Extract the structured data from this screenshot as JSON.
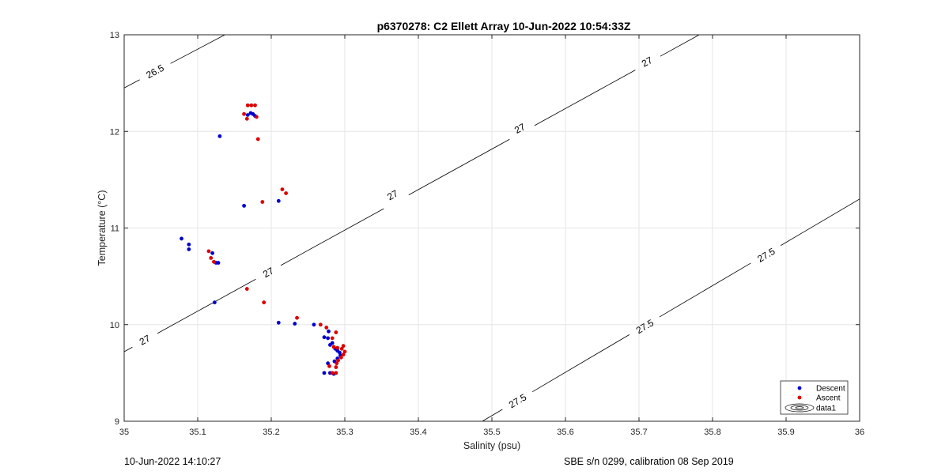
{
  "chart_data": {
    "type": "scatter",
    "title": "p6370278: C2 Ellett Array 10-Jun-2022 10:54:33Z",
    "xlabel": "Salinity (psu)",
    "ylabel": "Temperature (°C)",
    "xlim": [
      35,
      36
    ],
    "ylim": [
      9,
      13
    ],
    "xticks": [
      "35",
      "35.1",
      "35.2",
      "35.3",
      "35.4",
      "35.5",
      "35.6",
      "35.7",
      "35.8",
      "35.9",
      "36"
    ],
    "yticks": [
      "9",
      "10",
      "11",
      "12",
      "13"
    ],
    "grid": true,
    "legend_position": "bottom-right",
    "contours": [
      {
        "label": "26.5",
        "line": [
          [
            35.0,
            12.45
          ],
          [
            35.137,
            13.0
          ]
        ],
        "labels_at": [
          [
            35.042,
            12.62
          ]
        ]
      },
      {
        "label": "27",
        "line": [
          [
            35.0,
            9.72
          ],
          [
            35.782,
            13.0
          ]
        ],
        "labels_at": [
          [
            35.028,
            9.84
          ],
          [
            35.196,
            10.54
          ],
          [
            35.365,
            11.34
          ],
          [
            35.538,
            12.03
          ],
          [
            35.711,
            12.72
          ]
        ]
      },
      {
        "label": "27.5",
        "line": [
          [
            35.487,
            9.0
          ],
          [
            36.0,
            11.3
          ]
        ],
        "labels_at": [
          [
            35.535,
            9.21
          ],
          [
            35.708,
            9.98
          ],
          [
            35.873,
            10.72
          ]
        ]
      }
    ],
    "series": [
      {
        "name": "Descent",
        "color": "#0000cc",
        "points": [
          [
            35.13,
            11.95
          ],
          [
            35.163,
            11.23
          ],
          [
            35.21,
            11.28
          ],
          [
            35.168,
            12.17
          ],
          [
            35.172,
            12.19
          ],
          [
            35.175,
            12.18
          ],
          [
            35.178,
            12.16
          ],
          [
            35.078,
            10.89
          ],
          [
            35.088,
            10.83
          ],
          [
            35.088,
            10.78
          ],
          [
            35.12,
            10.74
          ],
          [
            35.125,
            10.64
          ],
          [
            35.128,
            10.64
          ],
          [
            35.123,
            10.23
          ],
          [
            35.21,
            10.02
          ],
          [
            35.232,
            10.01
          ],
          [
            35.258,
            10.0
          ],
          [
            35.272,
            9.87
          ],
          [
            35.277,
            9.86
          ],
          [
            35.278,
            9.93
          ],
          [
            35.28,
            9.79
          ],
          [
            35.283,
            9.81
          ],
          [
            35.287,
            9.75
          ],
          [
            35.29,
            9.73
          ],
          [
            35.293,
            9.71
          ],
          [
            35.294,
            9.68
          ],
          [
            35.29,
            9.65
          ],
          [
            35.286,
            9.62
          ],
          [
            35.277,
            9.6
          ],
          [
            35.272,
            9.5
          ],
          [
            35.28,
            9.5
          ],
          [
            35.285,
            9.49
          ]
        ]
      },
      {
        "name": "Ascent",
        "color": "#dd0000",
        "points": [
          [
            35.163,
            12.18
          ],
          [
            35.167,
            12.13
          ],
          [
            35.168,
            12.27
          ],
          [
            35.173,
            12.27
          ],
          [
            35.178,
            12.27
          ],
          [
            35.18,
            12.15
          ],
          [
            35.182,
            11.92
          ],
          [
            35.188,
            11.27
          ],
          [
            35.215,
            11.4
          ],
          [
            35.22,
            11.36
          ],
          [
            35.115,
            10.76
          ],
          [
            35.118,
            10.69
          ],
          [
            35.122,
            10.65
          ],
          [
            35.167,
            10.37
          ],
          [
            35.19,
            10.23
          ],
          [
            35.235,
            10.07
          ],
          [
            35.267,
            10.0
          ],
          [
            35.275,
            9.97
          ],
          [
            35.283,
            9.86
          ],
          [
            35.288,
            9.92
          ],
          [
            35.285,
            9.77
          ],
          [
            35.29,
            9.76
          ],
          [
            35.296,
            9.75
          ],
          [
            35.298,
            9.78
          ],
          [
            35.3,
            9.72
          ],
          [
            35.298,
            9.69
          ],
          [
            35.295,
            9.66
          ],
          [
            35.291,
            9.63
          ],
          [
            35.289,
            9.6
          ],
          [
            35.288,
            9.56
          ],
          [
            35.283,
            9.5
          ],
          [
            35.288,
            9.5
          ],
          [
            35.279,
            9.57
          ]
        ]
      }
    ],
    "legend": [
      "Descent",
      "Ascent",
      "data1"
    ]
  },
  "footer": {
    "left": "10-Jun-2022 14:10:27",
    "right": "SBE s/n 0299, calibration 08 Sep 2019"
  }
}
